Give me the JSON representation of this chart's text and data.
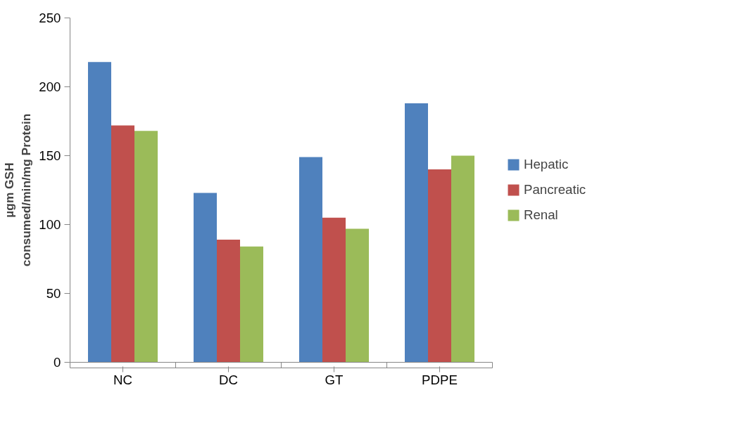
{
  "chart_data": {
    "type": "bar",
    "ylabel": "µgm GSH\nconsumed/min/mg Protein",
    "categories": [
      "NC",
      "DC",
      "GT",
      "PDPE"
    ],
    "series": [
      {
        "name": "Hepatic",
        "color": "#4f81bd",
        "values": [
          218,
          123,
          149,
          188
        ]
      },
      {
        "name": "Pancreatic",
        "color": "#c0504d",
        "values": [
          172,
          89,
          105,
          140
        ]
      },
      {
        "name": "Renal",
        "color": "#9bbb59",
        "values": [
          168,
          84,
          97,
          150
        ]
      }
    ],
    "ylim": [
      0,
      250
    ],
    "yticks": [
      0,
      50,
      100,
      150,
      200,
      250
    ],
    "grid": false,
    "legend": "right"
  }
}
